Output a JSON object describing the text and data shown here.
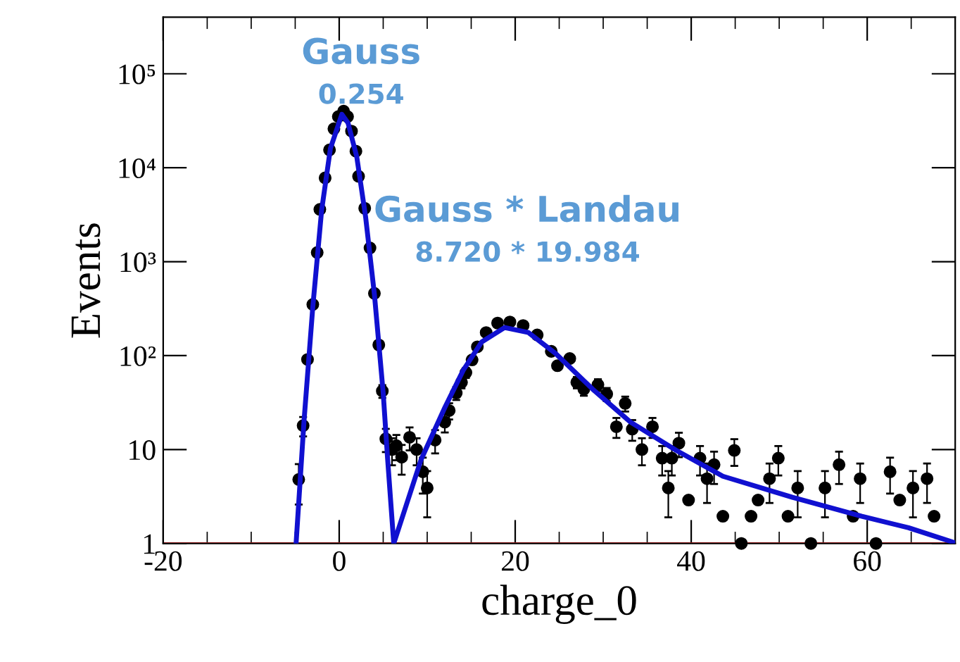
{
  "chart_data": {
    "type": "scatter",
    "xlabel": "charge_0",
    "ylabel": "Events",
    "log": "y",
    "grid": false,
    "legend": false,
    "xlim": [
      -20,
      70
    ],
    "xticks": [
      -20,
      0,
      20,
      40,
      60
    ],
    "ylim": [
      1,
      400000
    ],
    "yticks": [
      1,
      10,
      {
        "value": 100,
        "label": "10²"
      },
      {
        "value": 1000,
        "label": "10³"
      },
      {
        "value": 10000,
        "label": "10⁴"
      },
      {
        "value": 100000,
        "label": "10⁵"
      }
    ],
    "annotations": [
      "Gauss",
      "0.254",
      "Gauss * Landau",
      "8.720 * 19.984"
    ],
    "ref_lines": [
      {
        "axis": "y",
        "value": 1,
        "color": "#b22222",
        "line_style": "solid"
      }
    ],
    "series": [
      {
        "color": "#000000",
        "marker": "circle",
        "x": [
          -4.6,
          -4.1,
          -3.6,
          -3.0,
          -2.5,
          -2.2,
          -1.6,
          -1.1,
          -0.6,
          -0.1,
          0.5,
          0.95,
          1.4,
          1.9,
          2.2,
          2.9,
          3.5,
          4.0,
          4.5,
          4.9,
          5.3,
          6.0,
          6.5,
          7.1,
          8.0,
          8.8,
          9.5,
          10.0,
          10.9,
          12.0,
          12.5,
          13.3,
          13.9,
          14.4,
          15.1,
          15.7,
          16.7,
          18.0,
          19.4,
          20.9,
          22.5,
          24.1,
          24.8,
          26.2,
          27.0,
          27.8,
          29.4,
          30.4,
          31.5,
          32.5,
          33.3,
          34.4,
          35.6,
          36.7,
          37.4,
          37.8,
          38.6,
          39.7,
          41.0,
          41.8,
          42.6,
          43.6,
          44.9,
          45.7,
          46.8,
          47.6,
          48.9,
          49.9,
          51.0,
          52.1,
          53.6,
          55.2,
          56.8,
          58.4,
          59.2,
          61.0,
          62.6,
          63.7,
          65.2,
          66.8,
          67.6
        ],
        "values": [
          4.8,
          18,
          91,
          350,
          1250,
          3600,
          7800,
          15500,
          26000,
          35000,
          40000,
          35000,
          24500,
          15000,
          8100,
          3700,
          1400,
          460,
          130,
          42,
          13,
          10,
          11,
          8.3,
          13.5,
          10,
          5.8,
          3.9,
          12.6,
          19.6,
          26,
          40,
          52,
          66,
          90,
          124,
          176,
          222,
          228,
          209,
          166,
          111,
          78,
          93,
          52,
          44,
          49,
          39,
          17.5,
          31,
          16.5,
          10,
          17.5,
          8.1,
          3.9,
          8.1,
          11.7,
          2.9,
          8.1,
          4.9,
          6.9,
          1.95,
          9.8,
          1,
          1.95,
          2.9,
          4.9,
          8.1,
          1.95,
          3.9,
          1,
          3.9,
          6.9,
          1.95,
          4.9,
          1,
          5.8,
          2.9,
          3.9,
          4.9,
          1.95
        ],
        "errors": [
          2.2,
          4.2,
          null,
          null,
          null,
          null,
          null,
          null,
          null,
          null,
          null,
          null,
          null,
          null,
          null,
          null,
          null,
          null,
          null,
          6.5,
          3.6,
          3.2,
          3.3,
          2.9,
          3.7,
          3.2,
          2.4,
          2,
          3.5,
          4.4,
          5.1,
          6.3,
          7.2,
          8.1,
          null,
          null,
          null,
          null,
          null,
          null,
          null,
          null,
          null,
          null,
          7.2,
          6.6,
          7,
          6.2,
          4.2,
          5.6,
          4.1,
          3.2,
          4.2,
          2.8,
          2,
          2.8,
          3.4,
          null,
          2.8,
          2.2,
          2.6,
          null,
          3.1,
          null,
          null,
          null,
          2.2,
          2.8,
          null,
          2,
          null,
          2,
          2.6,
          null,
          2.2,
          null,
          2.4,
          null,
          2,
          2.2,
          null
        ]
      },
      {
        "type": "line",
        "color": "#1010d0",
        "marker": "none",
        "line_style": "solid",
        "x": [
          -4.9,
          -4,
          -3,
          -2,
          -1,
          0.3,
          1,
          2,
          3,
          4,
          5,
          5.5,
          6.2,
          9.3,
          12.0,
          14.1,
          16.2,
          18.8,
          21.5,
          24.6,
          28.8,
          33.1,
          38.3,
          43.6,
          51.5,
          59.4,
          64.7,
          69.8
        ],
        "values": [
          1,
          20,
          330,
          3500,
          16000,
          37000,
          30000,
          13000,
          3000,
          450,
          40,
          8,
          1,
          7.8,
          28,
          70,
          140,
          199,
          176,
          105,
          44,
          19.6,
          9.8,
          5.2,
          3.1,
          1.95,
          1.47,
          1.03
        ]
      }
    ]
  }
}
